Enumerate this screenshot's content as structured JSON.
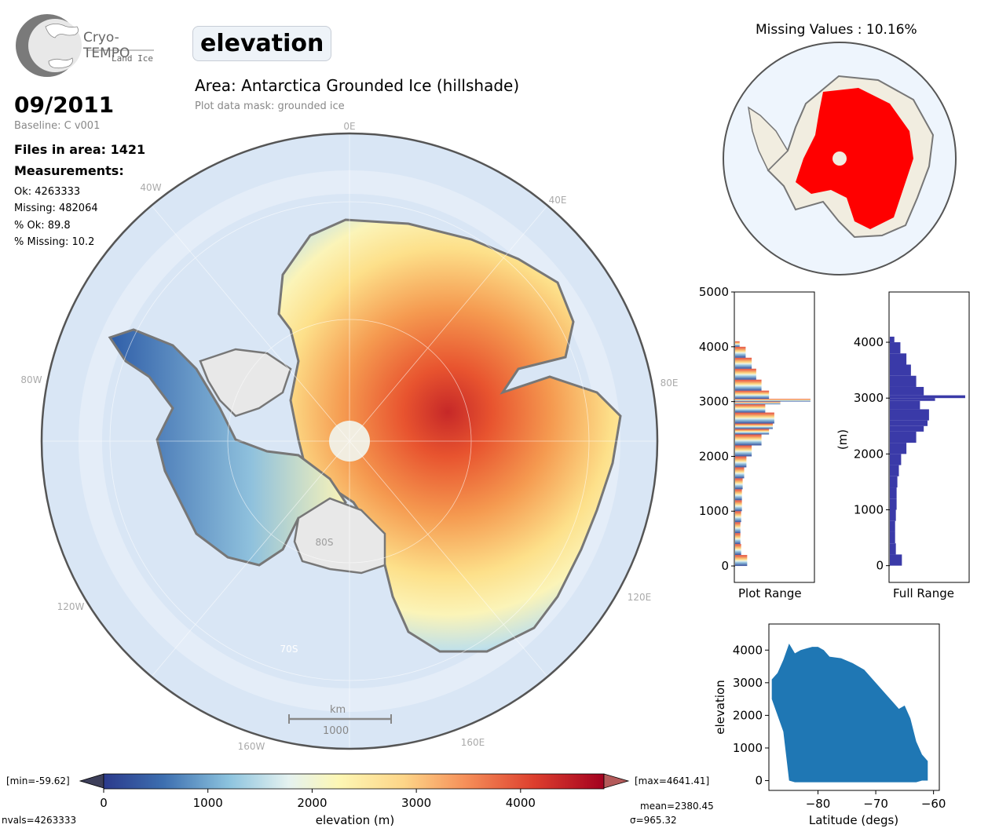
{
  "logo": {
    "name": "Cryo-TEMPO",
    "subtitle": "Land Ice"
  },
  "parameter": "elevation",
  "area_title": "Area: Antarctica Grounded Ice (hillshade)",
  "mask_note": "Plot data mask: grounded ice",
  "date": "09/2011",
  "baseline": "Baseline: C v001",
  "files": "Files in area: 1421",
  "measurements": {
    "heading": "Measurements:",
    "ok": "Ok: 4263333",
    "missing": "Missing: 482064",
    "pct_ok": "% Ok: 89.8",
    "pct_missing": "% Missing: 10.2"
  },
  "map": {
    "lon_labels": [
      "0E",
      "40E",
      "80E",
      "120E",
      "160E",
      "160W",
      "120W",
      "80W",
      "40W"
    ],
    "lat_labels": [
      "80S",
      "70S"
    ],
    "scalebar_unit": "km",
    "scalebar_value": "1000"
  },
  "missing_title": "Missing Values : 10.16%",
  "colorbar": {
    "min_label": "[min=-59.62]",
    "max_label": "[max=4641.41]",
    "ticks": [
      "0",
      "1000",
      "2000",
      "3000",
      "4000"
    ],
    "xlabel": "elevation (m)",
    "nvals": "nvals=4263333",
    "mean": "mean=2380.45",
    "sigma": "σ=965.32"
  },
  "colors": {
    "ocean": "#d9e6f5",
    "land_grey": "#e8e8e8",
    "missing_red": "#ff0000",
    "missing_land": "#f1ede0",
    "hist_full": "#3a3aa8",
    "scatter": "#1f77b4"
  },
  "chart_data": [
    {
      "type": "bar",
      "orientation": "horizontal",
      "name": "plot-range-histogram",
      "xlabel": "Plot Range",
      "ylim": [
        -300,
        5000
      ],
      "y_ticks": [
        "0",
        "1000",
        "2000",
        "3000",
        "4000",
        "5000"
      ],
      "bins": [
        0,
        200,
        400,
        600,
        800,
        1000,
        1200,
        1400,
        1600,
        1800,
        2000,
        2200,
        2400,
        2500,
        2600,
        2800,
        2950,
        3000,
        3050,
        3200,
        3400,
        3600,
        3800,
        4000
      ],
      "counts": [
        0.16,
        0.08,
        0.07,
        0.07,
        0.08,
        0.09,
        0.09,
        0.1,
        0.12,
        0.15,
        0.22,
        0.35,
        0.45,
        0.5,
        0.52,
        0.4,
        0.6,
        1.0,
        0.45,
        0.35,
        0.28,
        0.22,
        0.14,
        0.06
      ]
    },
    {
      "type": "bar",
      "orientation": "horizontal",
      "name": "full-range-histogram",
      "xlabel": "Full Range",
      "ylabel": "(m)",
      "ylim": [
        -300,
        4900
      ],
      "y_ticks": [
        "0",
        "1000",
        "2000",
        "3000",
        "4000"
      ],
      "bins": [
        0,
        200,
        400,
        600,
        800,
        1000,
        1200,
        1400,
        1600,
        1800,
        2000,
        2200,
        2400,
        2500,
        2600,
        2800,
        2950,
        3000,
        3050,
        3200,
        3400,
        3600,
        3800,
        4000
      ],
      "counts": [
        0.16,
        0.08,
        0.07,
        0.07,
        0.08,
        0.09,
        0.09,
        0.1,
        0.12,
        0.15,
        0.22,
        0.35,
        0.45,
        0.5,
        0.52,
        0.4,
        0.6,
        1.0,
        0.45,
        0.35,
        0.28,
        0.22,
        0.14,
        0.06
      ]
    },
    {
      "type": "scatter",
      "name": "elevation-vs-latitude",
      "xlabel": "Latitude (degs)",
      "ylabel": "elevation",
      "xlim": [
        -88.5,
        -59
      ],
      "ylim": [
        -300,
        4800
      ],
      "x_ticks": [
        "−80",
        "−70",
        "−60"
      ],
      "y_ticks": [
        "0",
        "1000",
        "2000",
        "3000",
        "4000"
      ],
      "envelope": {
        "x": [
          -88,
          -87,
          -86,
          -85,
          -84,
          -83,
          -82,
          -81,
          -80,
          -79,
          -78,
          -76,
          -74,
          -72,
          -70,
          -68,
          -67,
          -66,
          -65,
          -64,
          -63,
          -62,
          -61
        ],
        "ymax": [
          3100,
          3300,
          3700,
          4200,
          3900,
          4000,
          4050,
          4100,
          4100,
          4000,
          3800,
          3750,
          3600,
          3400,
          3000,
          2600,
          2400,
          2200,
          2300,
          1900,
          1200,
          800,
          600
        ],
        "ymin": [
          2500,
          2000,
          1500,
          0,
          -50,
          -50,
          -50,
          -50,
          -50,
          -50,
          -50,
          -50,
          -50,
          -50,
          -50,
          -50,
          -50,
          -50,
          -50,
          -50,
          -50,
          0,
          0
        ]
      }
    }
  ]
}
